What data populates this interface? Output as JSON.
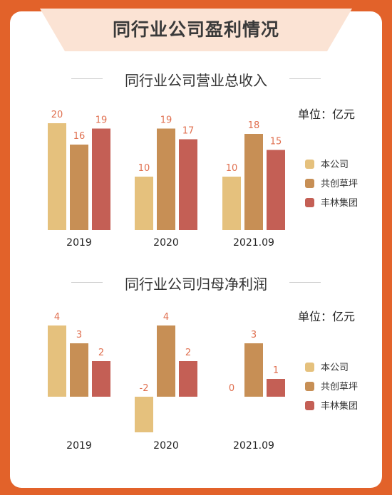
{
  "header": {
    "title": "同行业公司盈利情况"
  },
  "legend": [
    "本公司",
    "共创草坪",
    "丰林集团"
  ],
  "colors": {
    "本公司": "#e5c17d",
    "共创草坪": "#c78f55",
    "丰林集团": "#c45f55",
    "label": "#e07050"
  },
  "chart_data": [
    {
      "type": "bar",
      "title": "同行业公司营业总收入",
      "unit": "单位：亿元",
      "categories": [
        "2019",
        "2020",
        "2021.09"
      ],
      "series": [
        {
          "name": "本公司",
          "values": [
            20,
            10,
            10
          ]
        },
        {
          "name": "共创草坪",
          "values": [
            16,
            19,
            18
          ]
        },
        {
          "name": "丰林集团",
          "values": [
            19,
            17,
            15
          ]
        }
      ]
    },
    {
      "type": "bar",
      "title": "同行业公司归母净利润",
      "unit": "单位：亿元",
      "categories": [
        "2019",
        "2020",
        "2021.09"
      ],
      "series": [
        {
          "name": "本公司",
          "values": [
            4,
            -2,
            0
          ]
        },
        {
          "name": "共创草坪",
          "values": [
            3,
            4,
            3
          ]
        },
        {
          "name": "丰林集团",
          "values": [
            2,
            2,
            1
          ]
        }
      ]
    }
  ]
}
